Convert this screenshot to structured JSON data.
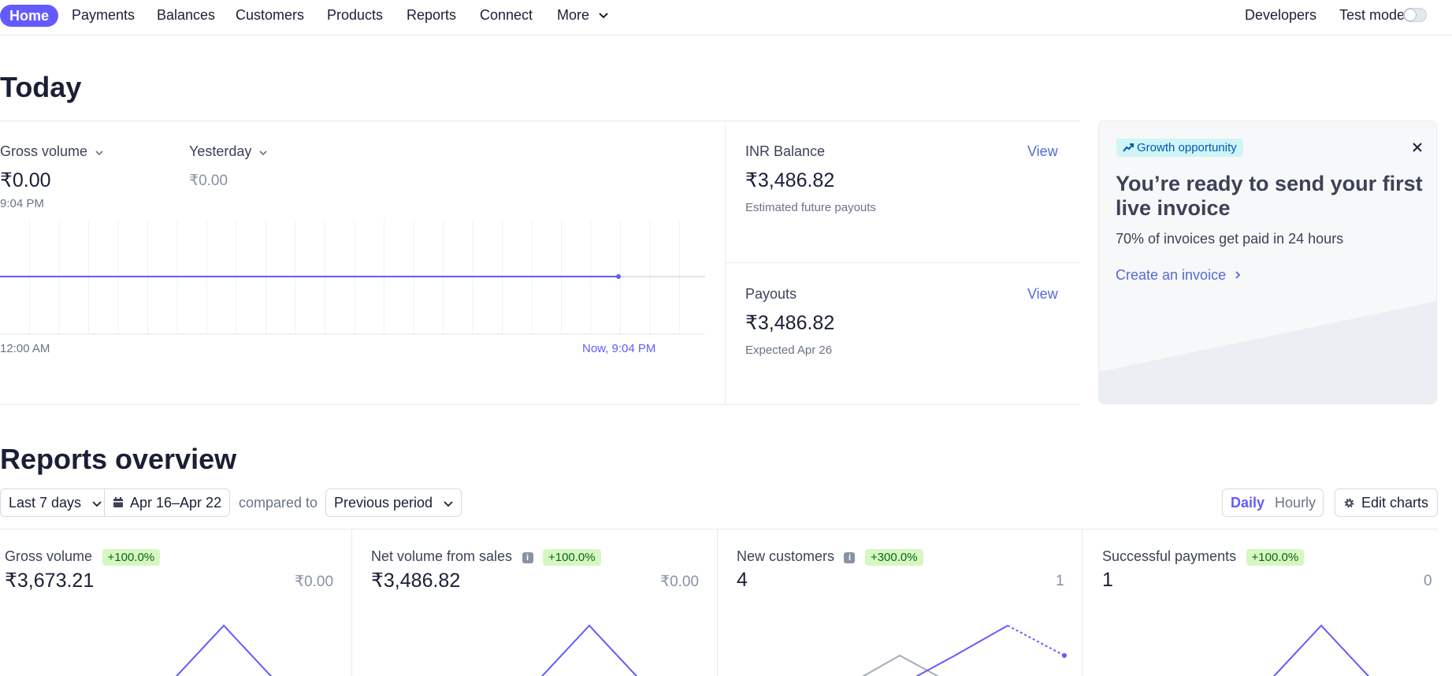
{
  "nav": {
    "home": "Home",
    "items": [
      "Payments",
      "Balances",
      "Customers",
      "Products",
      "Reports",
      "Connect",
      "More"
    ],
    "developers": "Developers",
    "test_mode": "Test mode"
  },
  "today": {
    "title": "Today",
    "gross_volume_label": "Gross volume",
    "gross_volume_value": "₹0.00",
    "gross_volume_time": "9:04 PM",
    "yesterday_label": "Yesterday",
    "yesterday_value": "₹0.00",
    "axis_start": "12:00 AM",
    "axis_now": "Now, 9:04 PM",
    "inr_balance_label": "INR Balance",
    "inr_balance_value": "₹3,486.82",
    "inr_balance_sub": "Estimated future payouts",
    "payouts_label": "Payouts",
    "payouts_value": "₹3,486.82",
    "payouts_sub": "Expected Apr 26",
    "view_label": "View"
  },
  "promo": {
    "chip": "Growth opportunity",
    "heading": "You’re ready to send your first live invoice",
    "body": "70% of invoices get paid in 24 hours",
    "link": "Create an invoice"
  },
  "reports": {
    "title": "Reports overview",
    "range": "Last 7 days",
    "dates": "Apr 16–Apr 22",
    "compared_to": "compared to",
    "comparison": "Previous period",
    "daily": "Daily",
    "hourly": "Hourly",
    "edit_charts": "Edit charts",
    "cards": [
      {
        "label": "Gross volume",
        "badge": "+100.0%",
        "value": "₹3,673.21",
        "previous": "₹0.00",
        "info": false
      },
      {
        "label": "Net volume from sales",
        "badge": "+100.0%",
        "value": "₹3,486.82",
        "previous": "₹0.00",
        "info": true
      },
      {
        "label": "New customers",
        "badge": "+300.0%",
        "value": "4",
        "previous": "1",
        "info": true
      },
      {
        "label": "Successful payments",
        "badge": "+100.0%",
        "value": "1",
        "previous": "0",
        "info": false
      }
    ]
  },
  "colors": {
    "accent": "#635bff",
    "badge_bg": "#d7f7c2",
    "badge_text": "#05690d",
    "link": "#5469d4"
  },
  "icons": {
    "more_chevron": "chevron-down-icon",
    "calendar": "calendar-icon",
    "gear": "gear-icon",
    "close": "close-icon",
    "trend": "trend-up-icon",
    "info": "info-icon"
  }
}
